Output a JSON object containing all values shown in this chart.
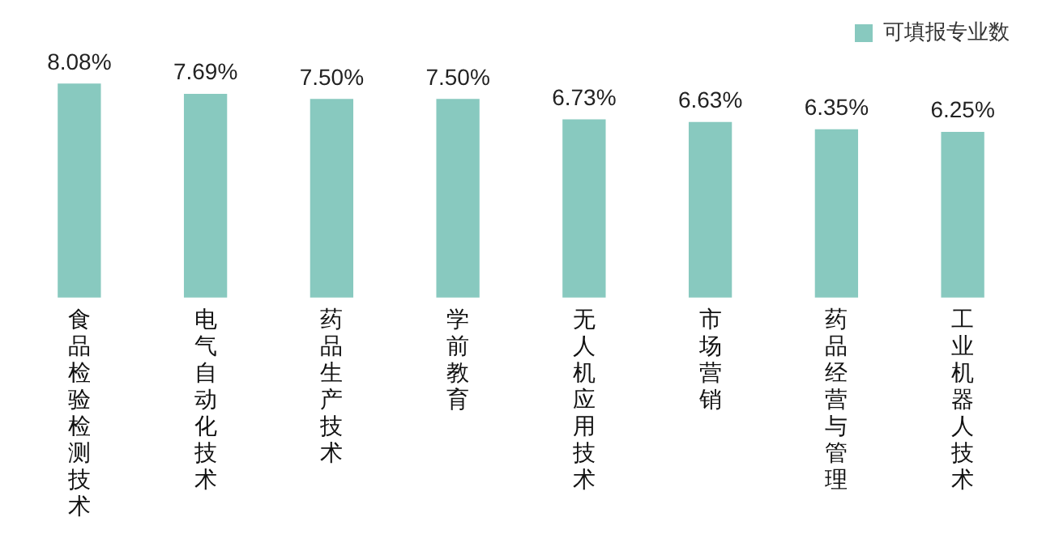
{
  "chart_data": {
    "type": "bar",
    "categories": [
      "食品检验检测技术",
      "电气自动化技术",
      "药品生产技术",
      "学前教育",
      "无人机应用技术",
      "市场营销",
      "药品经营与管理",
      "工业机器人技术"
    ],
    "series": [
      {
        "name": "可填报专业数",
        "color": "#88c9bf",
        "values": [
          8.08,
          7.69,
          7.5,
          7.5,
          6.73,
          6.63,
          6.35,
          6.25
        ],
        "value_labels": [
          "8.08%",
          "7.69%",
          "7.50%",
          "7.50%",
          "6.73%",
          "6.63%",
          "6.35%",
          "6.25%"
        ]
      }
    ],
    "legend": "top right",
    "grid": false
  }
}
